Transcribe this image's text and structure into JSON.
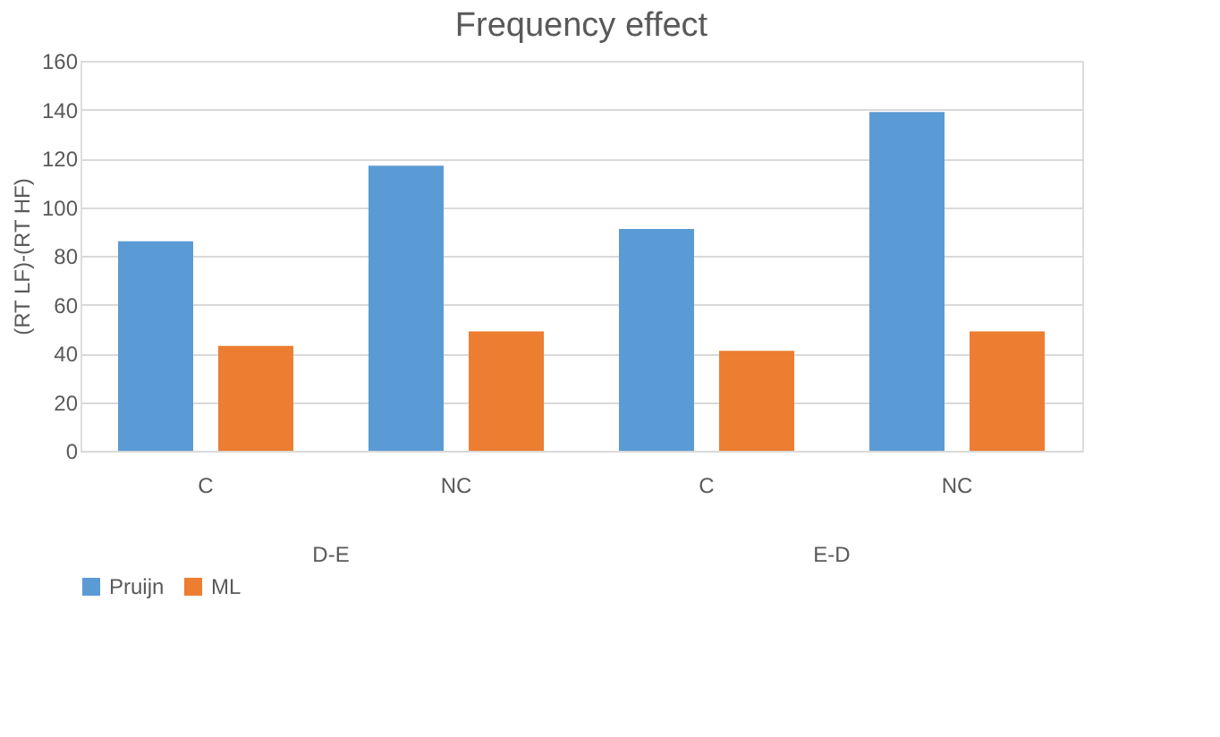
{
  "chart_data": {
    "type": "bar",
    "title": "Frequency effect",
    "ylabel": "(RT LF)-(RT HF)",
    "categories": [
      "C",
      "NC",
      "C",
      "NC"
    ],
    "series": [
      {
        "name": "Pruijn",
        "color": "#5b9bd5",
        "values": [
          86,
          117,
          91,
          139
        ]
      },
      {
        "name": "ML",
        "color": "#ed7d31",
        "values": [
          43,
          49,
          41,
          49
        ]
      }
    ],
    "annotations": [
      "D-E",
      "E-D"
    ],
    "ylim": [
      0,
      160
    ],
    "yticks": [
      0,
      20,
      40,
      60,
      80,
      100,
      120,
      140,
      160
    ],
    "grid": "y",
    "legend": "bottom"
  }
}
